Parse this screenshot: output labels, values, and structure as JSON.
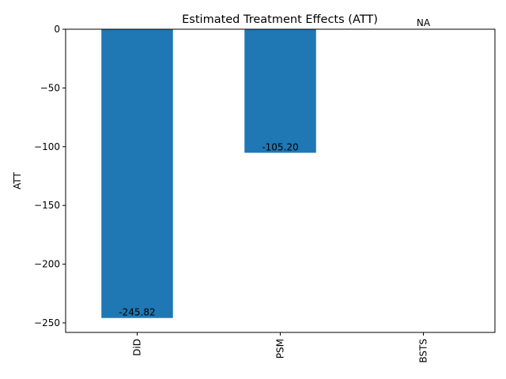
{
  "chart_data": {
    "type": "bar",
    "title": "Estimated Treatment Effects (ATT)",
    "xlabel": "",
    "ylabel": "ATT",
    "categories": [
      "DiD",
      "PSM",
      "BSTS"
    ],
    "values": [
      -245.82,
      -105.2,
      null
    ],
    "data_labels": [
      "-245.82",
      "-105.20",
      "NA"
    ],
    "ylim": [
      -258.1,
      0
    ],
    "yticks": [
      0,
      -50,
      -100,
      -150,
      -200,
      -250
    ],
    "ytick_labels": [
      "0",
      "−50",
      "−100",
      "−150",
      "−200",
      "−250"
    ],
    "bar_color": "#1f77b4",
    "grid": false,
    "legend": "none"
  }
}
